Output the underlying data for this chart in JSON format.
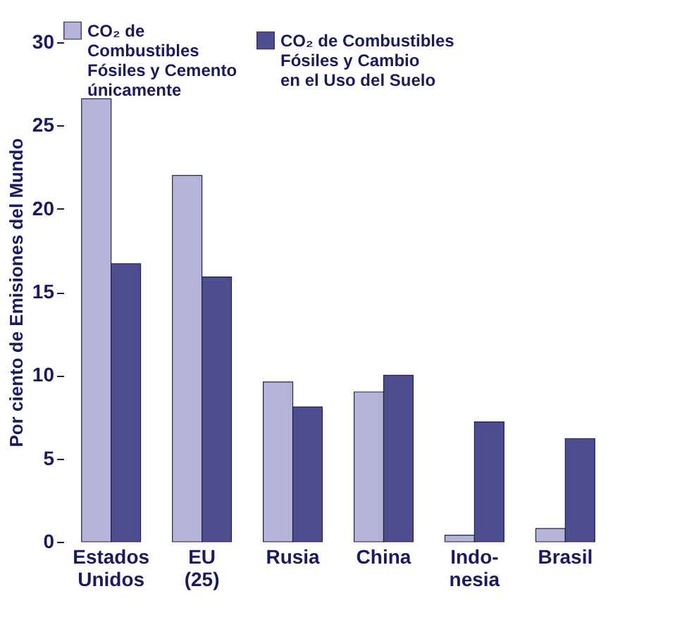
{
  "chart_data": {
    "type": "bar",
    "ylabel": "Por ciento de Emisiones del Mundo",
    "categories": [
      "Estados\nUnidos",
      "EU\n(25)",
      "Rusia",
      "China",
      "Indo-\nnesia",
      "Brasil"
    ],
    "series": [
      {
        "name": "CO₂ de\nCombustibles\nFósiles y Cemento\núnicamente",
        "color": "#b4b4d8",
        "values": [
          26.6,
          22.0,
          9.6,
          9.0,
          0.4,
          0.8
        ]
      },
      {
        "name": "CO₂ de Combustibles\nFósiles y Cambio\nen el Uso del Suelo",
        "color": "#4d4d8f",
        "values": [
          16.7,
          15.9,
          8.1,
          10.0,
          7.2,
          6.2
        ]
      }
    ],
    "ylim": [
      0,
      30
    ],
    "yticks": [
      0,
      5,
      10,
      15,
      20,
      25,
      30
    ],
    "grid": false,
    "legend": "top"
  }
}
